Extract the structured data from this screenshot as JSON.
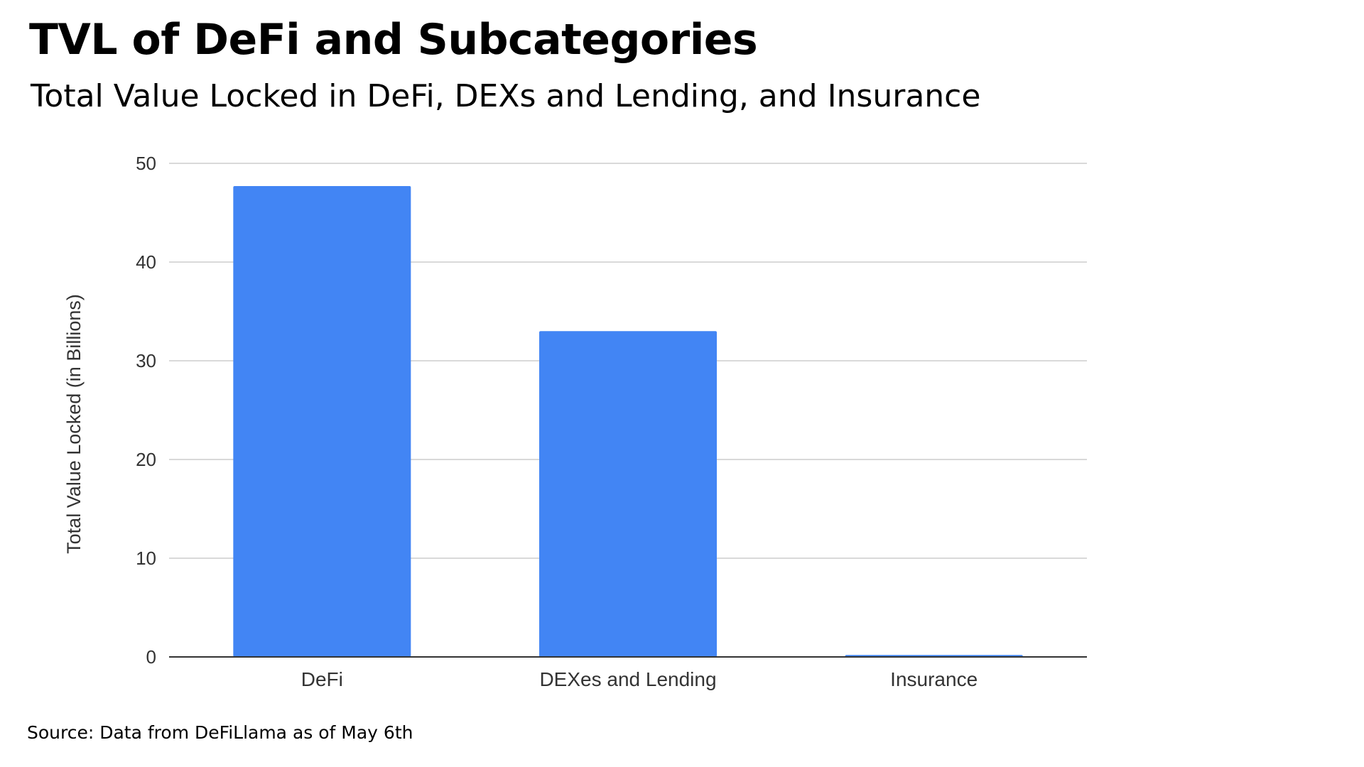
{
  "header": {
    "title": "TVL of DeFi and Subcategories",
    "subtitle": "Total Value Locked in DeFi, DEXs and Lending, and Insurance"
  },
  "footer": {
    "source": "Source: Data from DeFiLlama as of May 6th"
  },
  "colors": {
    "bar": "#4285f4",
    "grid": "#d9d9d9",
    "baseline": "#333333",
    "text": "#333333"
  },
  "chart_data": {
    "type": "bar",
    "title": "",
    "xlabel": "",
    "ylabel": "Total Value Locked (in Billions)",
    "categories": [
      "DeFi",
      "DEXes and Lending",
      "Insurance"
    ],
    "values": [
      47.7,
      33.0,
      0.2
    ],
    "ylim": [
      0,
      50
    ],
    "yticks": [
      0,
      10,
      20,
      30,
      40,
      50
    ],
    "grid": true,
    "legend": "none"
  }
}
